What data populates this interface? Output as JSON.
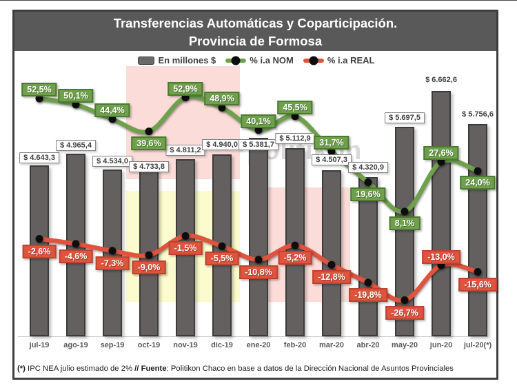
{
  "title": {
    "line1": "Transferencias Automáticas y Coparticipación.",
    "line2": "Provincia de Formosa"
  },
  "legend": [
    {
      "label": "En millones $",
      "type": "bar",
      "color": "#6a6a6a"
    },
    {
      "label": "% i.a NOM",
      "type": "line",
      "color": "#6fa14c"
    },
    {
      "label": "% i.a REAL",
      "type": "line",
      "color": "#e0533d"
    }
  ],
  "watermark": "politikon",
  "footnote": {
    "prefix": "(*)",
    "part1": " IPC NEA julio estimado de 2% ",
    "separator": "//",
    "fuente_label": " Fuente",
    "part2": ": Politikon Chaco en base a datos de la Dirección Nacional de Asuntos Provinciales"
  },
  "chart_data": {
    "type": "bar",
    "subtype": "combo-bar-and-lines",
    "title": "Transferencias Automáticas y Coparticipación. Provincia de Formosa",
    "legend_position": "top",
    "y_axis_shown": false,
    "grid": false,
    "categories": [
      "jul-19",
      "ago-19",
      "sep-19",
      "oct-19",
      "nov-19",
      "dic-19",
      "ene-20",
      "feb-20",
      "mar-20",
      "abr-20",
      "may-20",
      "jun-20",
      "jul-20(*)"
    ],
    "series": [
      {
        "name": "En millones $",
        "type": "bar",
        "color": "#646060",
        "values": [
          4643.3,
          4965.4,
          4534.0,
          4733.8,
          4811.2,
          4940.0,
          5381.7,
          5112.9,
          4507.3,
          4320.9,
          5697.5,
          6662.6,
          5756.6
        ],
        "labels": [
          "$ 4.643,3",
          "$ 4.965,4",
          "$ 4.534,0",
          "$ 4.733,8",
          "$ 4.811,2",
          "$ 4.940,0",
          "$ 5.381,7",
          "$ 5.112,9",
          "$ 4.507,3",
          "$ 4.320,9",
          "$ 5.697,5",
          "$ 6.662,6",
          "$ 5.756,6"
        ]
      },
      {
        "name": "% i.a NOM",
        "type": "line",
        "color": "#6fa14c",
        "values": [
          52.5,
          50.1,
          44.4,
          39.6,
          52.9,
          48.9,
          40.1,
          45.5,
          31.7,
          19.6,
          8.1,
          27.6,
          24.0
        ],
        "labels": [
          "52,5%",
          "50,1%",
          "44,4%",
          "39,6%",
          "52,9%",
          "48,9%",
          "40,1%",
          "45,5%",
          "31,7%",
          "19,6%",
          "8,1%",
          "27,6%",
          "24,0%"
        ]
      },
      {
        "name": "% i.a REAL",
        "type": "line",
        "color": "#e0533d",
        "values": [
          -2.6,
          -4.6,
          -7.3,
          -9.0,
          -1.5,
          -5.5,
          -10.8,
          -5.2,
          -12.8,
          -19.8,
          -26.7,
          -13.0,
          -15.6
        ],
        "labels": [
          "-2,6%",
          "-4,6%",
          "-7,3%",
          "-9,0%",
          "-1,5%",
          "-5,5%",
          "-10,8%",
          "-5,2%",
          "-12,8%",
          "-19,8%",
          "-26,7%",
          "-13,0%",
          "-15,6%"
        ]
      }
    ],
    "highlight_bands": [
      {
        "color": "#fbdcd8",
        "from_category": "oct-19",
        "to_category": "dic-19",
        "area": "upper"
      },
      {
        "color": "#fbfbcd",
        "from_category": "oct-19",
        "to_category": "dic-19",
        "area": "lower"
      },
      {
        "color": "#fbdcd8",
        "from_category": "feb-20",
        "to_category": "mar-20",
        "area": "lower"
      }
    ]
  }
}
